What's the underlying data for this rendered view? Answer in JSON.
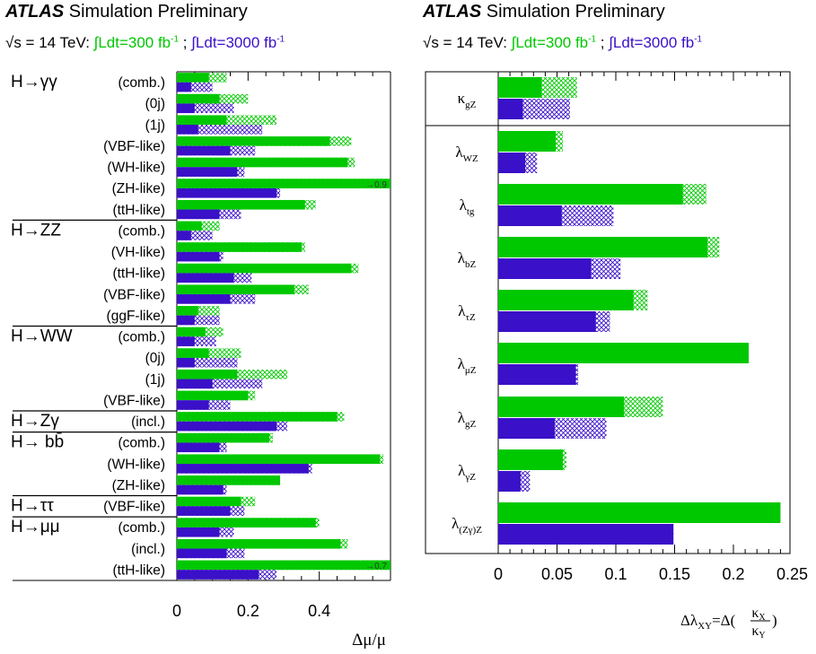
{
  "header": {
    "left": {
      "atlas": "ATLAS",
      "label": "Simulation Preliminary"
    },
    "right": {
      "atlas": "ATLAS",
      "label": "Simulation Preliminary"
    }
  },
  "subheader": {
    "sqrt_s": "√s = 14 TeV:",
    "lumi_300": "∫Ldt=300 fb",
    "lumi_300_exp": "-1",
    "separator": ";",
    "lumi_3000": "∫Ldt=3000 fb",
    "lumi_3000_exp": "-1"
  },
  "colors": {
    "lumi300": "#00c800",
    "lumi3000": "#3a10c8"
  },
  "chart_data": [
    {
      "type": "bar",
      "orientation": "horizontal",
      "xlabel": "Δμ/μ",
      "xlim": [
        0,
        0.6
      ],
      "xticks": [
        "0",
        "0.2",
        "0.4"
      ],
      "tick_values": [
        0,
        0.2,
        0.4
      ],
      "series": [
        {
          "name": "∫Ldt=300 fb-1",
          "color": "#00c800"
        },
        {
          "name": "∫Ldt=3000 fb-1",
          "color": "#3a10c8"
        }
      ],
      "groups": [
        {
          "label": "H→γγ",
          "rows": [
            {
              "label": "(comb.)",
              "v300": [
                0.09,
                0.14
              ],
              "v3000": [
                0.04,
                0.1
              ]
            },
            {
              "label": "(0j)",
              "v300": [
                0.12,
                0.2
              ],
              "v3000": [
                0.05,
                0.16
              ]
            },
            {
              "label": "(1j)",
              "v300": [
                0.14,
                0.28
              ],
              "v3000": [
                0.06,
                0.24
              ]
            },
            {
              "label": "(VBF-like)",
              "v300": [
                0.43,
                0.49
              ],
              "v3000": [
                0.15,
                0.22
              ]
            },
            {
              "label": "(WH-like)",
              "v300": [
                0.48,
                0.5
              ],
              "v3000": [
                0.17,
                0.19
              ]
            },
            {
              "label": "(ZH-like)",
              "v300": [
                0.6,
                0.6
              ],
              "v3000": [
                0.28,
                0.29
              ],
              "annotation": "→0.9"
            },
            {
              "label": "(ttH-like)",
              "v300": [
                0.36,
                0.39
              ],
              "v3000": [
                0.12,
                0.18
              ]
            }
          ]
        },
        {
          "label": "H→ZZ",
          "rows": [
            {
              "label": "(comb.)",
              "v300": [
                0.07,
                0.12
              ],
              "v3000": [
                0.04,
                0.1
              ]
            },
            {
              "label": "(VH-like)",
              "v300": [
                0.35,
                0.36
              ],
              "v3000": [
                0.12,
                0.13
              ]
            },
            {
              "label": "(ttH-like)",
              "v300": [
                0.49,
                0.51
              ],
              "v3000": [
                0.16,
                0.21
              ]
            },
            {
              "label": "(VBF-like)",
              "v300": [
                0.33,
                0.37
              ],
              "v3000": [
                0.15,
                0.22
              ]
            },
            {
              "label": "(ggF-like)",
              "v300": [
                0.06,
                0.12
              ],
              "v3000": [
                0.05,
                0.12
              ]
            }
          ]
        },
        {
          "label": "H→WW",
          "rows": [
            {
              "label": "(comb.)",
              "v300": [
                0.08,
                0.13
              ],
              "v3000": [
                0.05,
                0.11
              ]
            },
            {
              "label": "(0j)",
              "v300": [
                0.09,
                0.18
              ],
              "v3000": [
                0.05,
                0.17
              ]
            },
            {
              "label": "(1j)",
              "v300": [
                0.17,
                0.31
              ],
              "v3000": [
                0.1,
                0.24
              ]
            },
            {
              "label": "(VBF-like)",
              "v300": [
                0.2,
                0.22
              ],
              "v3000": [
                0.09,
                0.15
              ]
            }
          ]
        },
        {
          "label": "H→Zγ",
          "rows": [
            {
              "label": "(incl.)",
              "v300": [
                0.45,
                0.47
              ],
              "v3000": [
                0.28,
                0.31
              ]
            }
          ]
        },
        {
          "label": "H→ bb̄",
          "rows": [
            {
              "label": "(comb.)",
              "v300": [
                0.26,
                0.27
              ],
              "v3000": [
                0.12,
                0.14
              ]
            },
            {
              "label": "(WH-like)",
              "v300": [
                0.57,
                0.58
              ],
              "v3000": [
                0.37,
                0.38
              ]
            },
            {
              "label": "(ZH-like)",
              "v300": [
                0.29,
                0.29
              ],
              "v3000": [
                0.13,
                0.14
              ]
            }
          ]
        },
        {
          "label": "H→ττ",
          "rows": [
            {
              "label": "(VBF-like)",
              "v300": [
                0.18,
                0.22
              ],
              "v3000": [
                0.15,
                0.19
              ]
            }
          ]
        },
        {
          "label": "H→μμ",
          "rows": [
            {
              "label": "(comb.)",
              "v300": [
                0.39,
                0.4
              ],
              "v3000": [
                0.12,
                0.16
              ]
            },
            {
              "label": "(incl.)",
              "v300": [
                0.46,
                0.48
              ],
              "v3000": [
                0.14,
                0.19
              ]
            },
            {
              "label": "(ttH-like)",
              "v300": [
                0.6,
                0.6
              ],
              "v3000": [
                0.23,
                0.28
              ],
              "annotation": "→0.7"
            }
          ]
        }
      ]
    },
    {
      "type": "bar",
      "orientation": "horizontal",
      "xlabel": "Δλ_XY = Δ(κ_X/κ_Y)",
      "xlim": [
        0,
        0.27
      ],
      "xticks": [
        "0",
        "0.05",
        "0.1",
        "0.15",
        "0.2",
        "0.25"
      ],
      "tick_values": [
        0,
        0.05,
        0.1,
        0.15,
        0.2,
        0.25
      ],
      "series": [
        {
          "name": "∫Ldt=300 fb-1",
          "color": "#00c800"
        },
        {
          "name": "∫Ldt=3000 fb-1",
          "color": "#3a10c8"
        }
      ],
      "rows": [
        {
          "label": "κ",
          "sub": "gZ",
          "v300": [
            0.037,
            0.067
          ],
          "v3000": [
            0.021,
            0.061
          ]
        },
        {
          "label": "λ",
          "sub": "WZ",
          "v300": [
            0.049,
            0.055
          ],
          "v3000": [
            0.023,
            0.033
          ]
        },
        {
          "label": "λ",
          "sub": "tg",
          "v300": [
            0.157,
            0.177
          ],
          "v3000": [
            0.054,
            0.098
          ]
        },
        {
          "label": "λ",
          "sub": "bZ",
          "v300": [
            0.178,
            0.188
          ],
          "v3000": [
            0.079,
            0.104
          ]
        },
        {
          "label": "λ",
          "sub": "τZ",
          "v300": [
            0.115,
            0.127
          ],
          "v3000": [
            0.083,
            0.095
          ]
        },
        {
          "label": "λ",
          "sub": "μZ",
          "v300": [
            0.213,
            0.213
          ],
          "v3000": [
            0.066,
            0.068
          ]
        },
        {
          "label": "λ",
          "sub": "gZ",
          "v300": [
            0.107,
            0.14
          ],
          "v3000": [
            0.048,
            0.092
          ]
        },
        {
          "label": "λ",
          "sub": "γZ",
          "v300": [
            0.055,
            0.058
          ],
          "v3000": [
            0.019,
            0.027
          ]
        },
        {
          "label": "λ",
          "sub": "(Zγ)Z",
          "v300": [
            0.24,
            0.24
          ],
          "v3000": [
            0.149,
            0.149
          ]
        }
      ]
    }
  ]
}
